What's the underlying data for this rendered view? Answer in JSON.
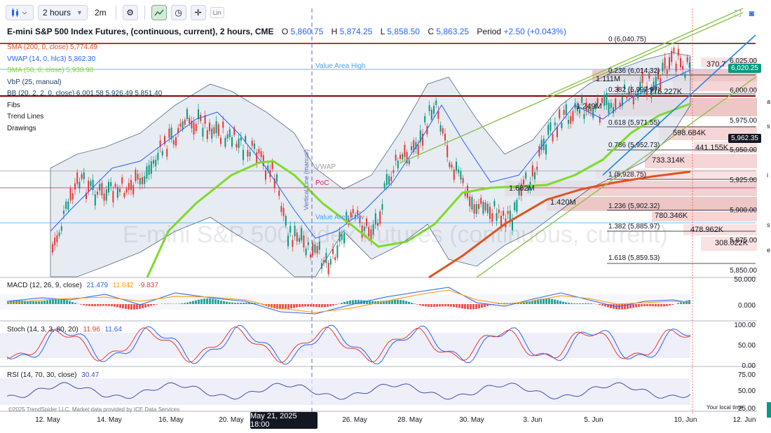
{
  "toolbar": {
    "timeframe": "2 hours",
    "interval_short": "2m",
    "scale_label": "Lin"
  },
  "header": {
    "title": "E-mini S&P 500 Index Futures, (continuous, current), 2 hours, CME",
    "open_label": "O",
    "open": "5,860.75",
    "high_label": "H",
    "high": "5,874.25",
    "low_label": "L",
    "low": "5,858.50",
    "close_label": "C",
    "close": "5,863.25",
    "period_label": "Period",
    "period": "+2.50 (+0.043%)"
  },
  "legend": {
    "sma200": "SMA (200, 0, close)  5,774.49",
    "vwap": "VWAP (14, 0, hlc3)  5,862.30",
    "sma50": "SMA (50, 0, close)  5,938.90",
    "vbp": "VbP (25, manual)",
    "bb": "BB (20, 2, 2, 0, close)  6,001.58  5,926.49  5,851.40",
    "fibs": "Fibs",
    "trend_lines": "Trend Lines",
    "drawings": "Drawings"
  },
  "overlays": {
    "value_area_high": "Value Area High",
    "vwap": "VWAP",
    "poc": "PoC",
    "value_area_low": "Value Area Low",
    "vertical_line_label": "Vertical Line (manual)",
    "watermark": "E-mini S&P 500 Index Futures (continuous, current)"
  },
  "fib_levels": [
    {
      "label": "0 (6,040.75)"
    },
    {
      "label": "0.236 (6,014.32)"
    },
    {
      "label": "0.382 (5,997.97)"
    },
    {
      "label": "0.618 (5,971.55)"
    },
    {
      "label": "0.786 (5,952.73)"
    },
    {
      "label": "1 (5,928.75)"
    },
    {
      "label": "1.236 (5,902.32)"
    },
    {
      "label": "1.382 (5,885.97)"
    },
    {
      "label": "1.618 (5,859.53)"
    }
  ],
  "vbp_labels": [
    "370.7",
    "1.111M",
    "776.227K",
    "1.249M",
    "598.684K",
    "441.155K",
    "733.314K",
    "1.682M",
    "1.420M",
    "780.346K",
    "478.962K",
    "308.022K"
  ],
  "price_axis": {
    "ticks": [
      "6,025.00",
      "6,000.00",
      "5,975.00",
      "5,950.00",
      "5,925.00",
      "5,900.00",
      "5,875.00",
      "5,850.00"
    ],
    "current_price": "6,020.25",
    "crosshair_price": "5,962.35"
  },
  "macd": {
    "legend": "MACD (12, 26, 9, close)",
    "v1": "21.479",
    "v2": "11.642",
    "v3": "-9.837",
    "axis": [
      "50.000",
      "0.000"
    ]
  },
  "stoch": {
    "legend": "Stoch (14, 3, 3, 80, 20)",
    "v1": "11.96",
    "v2": "11.64",
    "axis": [
      "100.00",
      "50.00",
      "0.00"
    ]
  },
  "rsi": {
    "legend": "RSI (14, 70, 30, close)",
    "v1": "30.47",
    "axis": [
      "75.00",
      "50.00",
      "25.00"
    ]
  },
  "time_axis": {
    "labels": [
      "12. May",
      "14. May",
      "16. May",
      "20. May",
      "26. May",
      "28. May",
      "30. May",
      "3. Jun",
      "5. Jun",
      "10. Jun",
      "12. Jun"
    ],
    "cursor_date": "May 21, 2025 18:00"
  },
  "footer": {
    "copyright": "©2025 TrendSpider LLC. Market data provided by ICE Data Services",
    "local_time": "Your local time"
  },
  "right_edge": [
    "a",
    "s",
    "i",
    "s",
    "e"
  ],
  "colors": {
    "sma200": "#e0531f",
    "sma50": "#7ddb2b",
    "vwap": "#2962ff",
    "bb_fill": "#dfe5ee",
    "trend_green": "#8bc34a",
    "trend_blue": "#1e88e5",
    "level_red": "#8b0000",
    "macd_up": "#26a69a",
    "macd_down": "#ef5350",
    "current_price": "#089981",
    "crosshair": "#131722"
  },
  "chart_data": {
    "type": "line",
    "series": [
      {
        "name": "SMA (50, 0, close)",
        "x": [
          "12. May",
          "16. May",
          "20. May",
          "26. May",
          "28. May",
          "30. May",
          "3. Jun",
          "5. Jun",
          "10. Jun"
        ],
        "values": [
          5780,
          5880,
          5930,
          5895,
          5900,
          5920,
          5925,
          5945,
          5975
        ]
      },
      {
        "name": "SMA (200, 0, close)",
        "x": [
          "30. May",
          "3. Jun",
          "5. Jun",
          "10. Jun"
        ],
        "values": [
          5855,
          5895,
          5915,
          5935
        ]
      }
    ],
    "ylim": [
      5845,
      6045
    ]
  }
}
